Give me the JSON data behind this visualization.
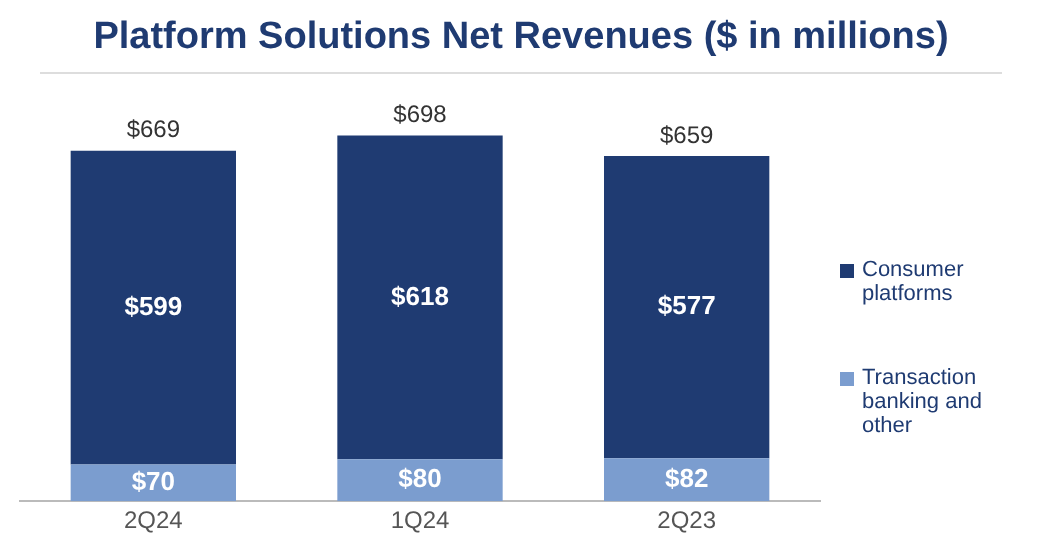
{
  "chart_data": {
    "type": "bar",
    "title": "Platform Solutions Net Revenues ($ in millions)",
    "categories": [
      "2Q24",
      "1Q24",
      "2Q23"
    ],
    "stacked": true,
    "legend": "right",
    "tick_labels": "x",
    "grid": false,
    "series": [
      {
        "name": "Transaction banking and other",
        "color": "#7b9dcf",
        "values": [
          70,
          80,
          82
        ],
        "value_labels": [
          "$70",
          "$80",
          "$82"
        ]
      },
      {
        "name": "Consumer platforms",
        "color": "#1f3b72",
        "values": [
          599,
          618,
          577
        ],
        "value_labels": [
          "$599",
          "$618",
          "$577"
        ]
      }
    ],
    "totals": [
      "$669",
      "$698",
      "$659"
    ]
  }
}
